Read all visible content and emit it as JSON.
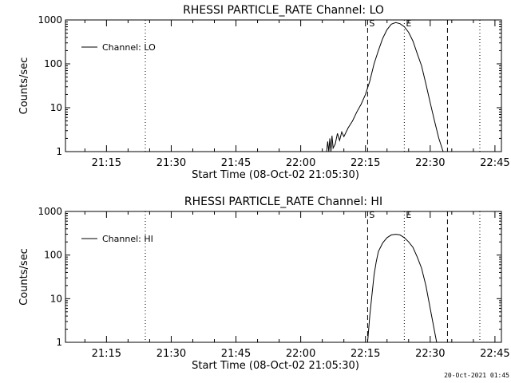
{
  "footer": {
    "timestamp": "20-Oct-2021 01:45"
  },
  "chart_data": [
    {
      "type": "line",
      "title": "RHESSI PARTICLE_RATE Channel: LO",
      "xlabel": "Start Time (08-Oct-02 21:05:30)",
      "ylabel": "Counts/sec",
      "yscale": "log",
      "ylim": [
        1,
        1000
      ],
      "xlim": [
        "21:05:30",
        "22:46:30"
      ],
      "xticks": [
        "21:15",
        "21:30",
        "21:45",
        "22:00",
        "22:15",
        "22:30",
        "22:45"
      ],
      "yticks": [
        "1",
        "10",
        "100",
        "1000"
      ],
      "legend": {
        "position": "top-left",
        "entries": [
          "Channel: LO"
        ]
      },
      "vlines": [
        {
          "x": "21:24:00",
          "style": "dotted",
          "label": ""
        },
        {
          "x": "22:15:30",
          "style": "dashed",
          "label": "S"
        },
        {
          "x": "22:24:00",
          "style": "dotted",
          "label": "E"
        },
        {
          "x": "22:34:00",
          "style": "dashed",
          "label": ""
        },
        {
          "x": "22:41:30",
          "style": "dotted",
          "label": ""
        }
      ],
      "series": [
        {
          "name": "Channel: LO",
          "x": [
            "22:06:00",
            "22:06:15",
            "22:06:30",
            "22:06:45",
            "22:07:00",
            "22:07:15",
            "22:07:30",
            "22:08:00",
            "22:08:30",
            "22:09:00",
            "22:09:30",
            "22:10:00",
            "22:11:00",
            "22:12:00",
            "22:13:00",
            "22:14:00",
            "22:15:00",
            "22:16:00",
            "22:17:00",
            "22:18:00",
            "22:19:00",
            "22:20:00",
            "22:21:00",
            "22:22:00",
            "22:23:00",
            "22:24:00",
            "22:25:00",
            "22:26:00",
            "22:27:00",
            "22:28:00",
            "22:29:00",
            "22:30:00",
            "22:31:00",
            "22:32:00",
            "22:33:00"
          ],
          "values": [
            1,
            1.7,
            1,
            2,
            1,
            2.3,
            1.2,
            1.5,
            2.6,
            1.8,
            2.8,
            2.2,
            3.5,
            5,
            8,
            12,
            20,
            40,
            100,
            200,
            380,
            600,
            800,
            870,
            820,
            700,
            520,
            330,
            170,
            90,
            35,
            13,
            5,
            2,
            1
          ]
        }
      ]
    },
    {
      "type": "line",
      "title": "RHESSI PARTICLE_RATE Channel: HI",
      "xlabel": "Start Time (08-Oct-02 21:05:30)",
      "ylabel": "Counts/sec",
      "yscale": "log",
      "ylim": [
        1,
        1000
      ],
      "xlim": [
        "21:05:30",
        "22:46:30"
      ],
      "xticks": [
        "21:15",
        "21:30",
        "21:45",
        "22:00",
        "22:15",
        "22:30",
        "22:45"
      ],
      "yticks": [
        "1",
        "10",
        "100",
        "1000"
      ],
      "legend": {
        "position": "top-left",
        "entries": [
          "Channel: HI"
        ]
      },
      "vlines": [
        {
          "x": "21:24:00",
          "style": "dotted",
          "label": ""
        },
        {
          "x": "22:15:30",
          "style": "dashed",
          "label": "S"
        },
        {
          "x": "22:24:00",
          "style": "dotted",
          "label": "E"
        },
        {
          "x": "22:34:00",
          "style": "dashed",
          "label": ""
        },
        {
          "x": "22:41:30",
          "style": "dotted",
          "label": ""
        }
      ],
      "series": [
        {
          "name": "Channel: HI",
          "x": [
            "22:15:30",
            "22:16:00",
            "22:16:30",
            "22:17:00",
            "22:17:30",
            "22:18:00",
            "22:19:00",
            "22:20:00",
            "22:21:00",
            "22:22:00",
            "22:23:00",
            "22:24:00",
            "22:25:00",
            "22:26:00",
            "22:27:00",
            "22:28:00",
            "22:29:00",
            "22:30:00",
            "22:31:00",
            "22:31:30"
          ],
          "values": [
            1,
            4,
            12,
            35,
            70,
            120,
            190,
            250,
            290,
            300,
            290,
            250,
            200,
            150,
            90,
            50,
            20,
            6,
            1.8,
            1
          ]
        }
      ]
    }
  ]
}
